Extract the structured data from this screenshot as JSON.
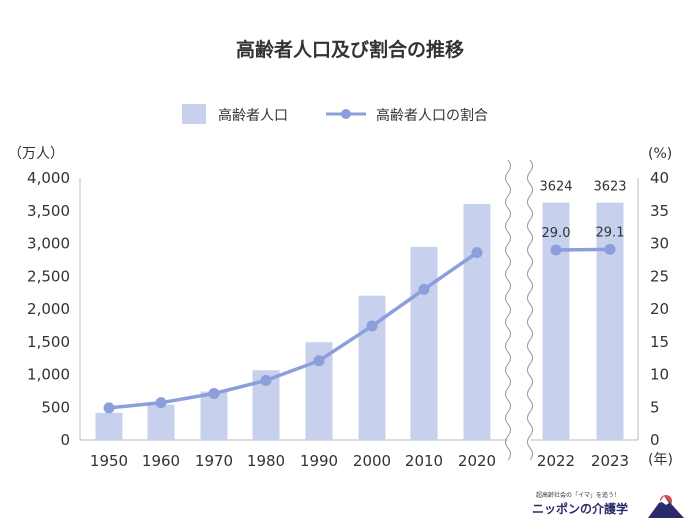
{
  "chart_data": {
    "type": "bar",
    "title": "高齢者人口及び割合の推移",
    "legend": [
      "高齢者人口",
      "高齢者人口の割合"
    ],
    "legend_position": "top",
    "left_unit": "（万人）",
    "right_unit": "(%)",
    "x_unit": "(年)",
    "categories": [
      "1950",
      "1960",
      "1970",
      "1980",
      "1990",
      "2000",
      "2010",
      "2020",
      "2022",
      "2023"
    ],
    "series": [
      {
        "name": "高齢者人口",
        "type": "bar",
        "axis": "left",
        "values": [
          416,
          540,
          739,
          1065,
          1493,
          2204,
          2948,
          3603,
          3624,
          3623
        ]
      },
      {
        "name": "高齢者人口の割合",
        "type": "line",
        "axis": "right",
        "values": [
          4.9,
          5.7,
          7.1,
          9.1,
          12.1,
          17.4,
          23.0,
          28.6,
          29.0,
          29.1
        ]
      }
    ],
    "data_labels": {
      "bars": [
        "3624",
        "3623"
      ],
      "line": [
        "29.0",
        "29.1"
      ]
    },
    "left_axis": {
      "min": 0,
      "max": 4000,
      "ticks": [
        "0",
        "500",
        "1,000",
        "1,500",
        "2,000",
        "2,500",
        "3,000",
        "3,500",
        "4,000"
      ]
    },
    "right_axis": {
      "min": 0,
      "max": 40,
      "ticks": [
        "0",
        "5",
        "10",
        "15",
        "20",
        "25",
        "30",
        "35",
        "40"
      ]
    },
    "axis_break": "between 2020 and 2022",
    "grid": false,
    "colors": {
      "bar": "#c7d0ed",
      "line": "#8c9fdb",
      "axis": "#bbbbbb",
      "text": "#333333"
    }
  },
  "logo": {
    "tagline": "超高齢社会の「イマ」を追う！",
    "name": "ニッポンの介護学"
  }
}
